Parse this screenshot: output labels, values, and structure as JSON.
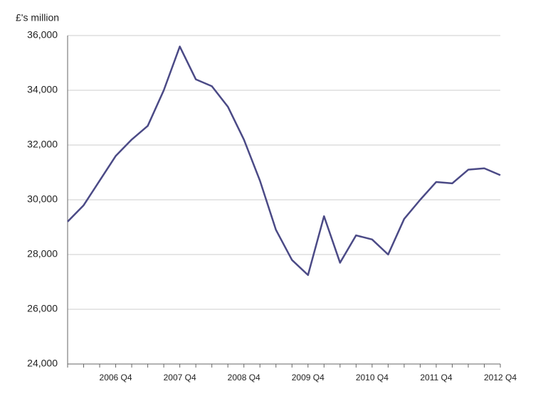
{
  "chart_data": {
    "type": "line",
    "y_label": "£'s million",
    "categories": [
      null,
      null,
      null,
      "2006 Q4",
      null,
      null,
      null,
      "2007 Q4",
      null,
      null,
      null,
      "2008 Q4",
      null,
      null,
      null,
      "2009 Q4",
      null,
      null,
      null,
      "2010 Q4",
      null,
      null,
      null,
      "2011 Q4",
      null,
      null,
      null,
      "2012 Q4"
    ],
    "series": [
      {
        "name": null,
        "color": "#4b4a86",
        "values": [
          29200,
          29800,
          30700,
          31600,
          32200,
          32700,
          34000,
          35600,
          34400,
          34150,
          33400,
          32200,
          30700,
          28900,
          27800,
          27250,
          29400,
          27700,
          28700,
          28550,
          28000,
          29300,
          30000,
          30650,
          30600,
          31100,
          31150,
          30900
        ]
      }
    ],
    "ylim": [
      24000,
      36000
    ],
    "yticks": [
      {
        "value": 24000,
        "label": "24,000"
      },
      {
        "value": 26000,
        "label": "26,000"
      },
      {
        "value": 28000,
        "label": "28,000"
      },
      {
        "value": 30000,
        "label": "30,000"
      },
      {
        "value": 32000,
        "label": "32,000"
      },
      {
        "value": 34000,
        "label": "34,000"
      },
      {
        "value": 36000,
        "label": "36,000"
      }
    ],
    "grid": true
  }
}
